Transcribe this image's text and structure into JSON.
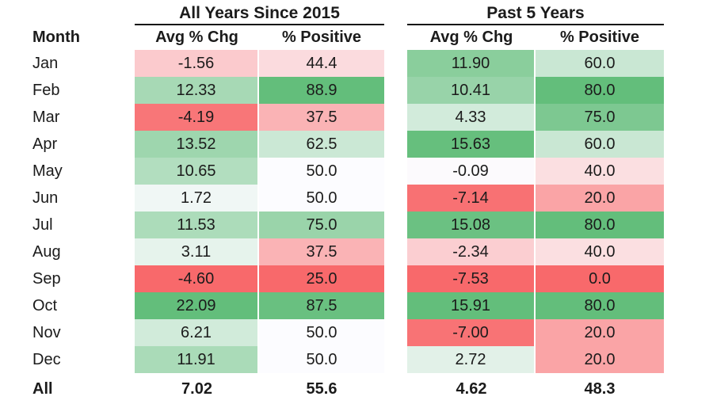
{
  "chart_data": {
    "type": "table",
    "subtype": "heatmap",
    "month_header": "Month",
    "groups": [
      {
        "title": "All Years Since 2015",
        "columns": [
          "Avg % Chg",
          "% Positive"
        ]
      },
      {
        "title": "Past 5 Years",
        "columns": [
          "Avg % Chg",
          "% Positive"
        ]
      }
    ],
    "rows": [
      {
        "month": "Jan",
        "cells": [
          "-1.56",
          "44.4",
          "11.90",
          "60.0"
        ]
      },
      {
        "month": "Feb",
        "cells": [
          "12.33",
          "88.9",
          "10.41",
          "80.0"
        ]
      },
      {
        "month": "Mar",
        "cells": [
          "-4.19",
          "37.5",
          "4.33",
          "75.0"
        ]
      },
      {
        "month": "Apr",
        "cells": [
          "13.52",
          "62.5",
          "15.63",
          "60.0"
        ]
      },
      {
        "month": "May",
        "cells": [
          "10.65",
          "50.0",
          "-0.09",
          "40.0"
        ]
      },
      {
        "month": "Jun",
        "cells": [
          "1.72",
          "50.0",
          "-7.14",
          "20.0"
        ]
      },
      {
        "month": "Jul",
        "cells": [
          "11.53",
          "75.0",
          "15.08",
          "80.0"
        ]
      },
      {
        "month": "Aug",
        "cells": [
          "3.11",
          "37.5",
          "-2.34",
          "40.0"
        ]
      },
      {
        "month": "Sep",
        "cells": [
          "-4.60",
          "25.0",
          "-7.53",
          "0.0"
        ]
      },
      {
        "month": "Oct",
        "cells": [
          "22.09",
          "87.5",
          "15.91",
          "80.0"
        ]
      },
      {
        "month": "Nov",
        "cells": [
          "6.21",
          "50.0",
          "-7.00",
          "20.0"
        ]
      },
      {
        "month": "Dec",
        "cells": [
          "11.91",
          "50.0",
          "2.72",
          "20.0"
        ]
      }
    ],
    "total": {
      "label": "All",
      "cells": [
        "7.02",
        "55.6",
        "4.62",
        "48.3"
      ]
    },
    "color_scale": {
      "min_color": "#F8696B",
      "mid_color": "#FCFCFF",
      "max_color": "#63BE7B",
      "column_scales": [
        {
          "min": -4.6,
          "mid": 0,
          "max": 22.09
        },
        {
          "min": 25.0,
          "mid": 50.0,
          "max": 88.9
        },
        {
          "min": -7.53,
          "mid": 0,
          "max": 15.91
        },
        {
          "min": 0.0,
          "mid": 50.0,
          "max": 80.0
        }
      ]
    }
  }
}
